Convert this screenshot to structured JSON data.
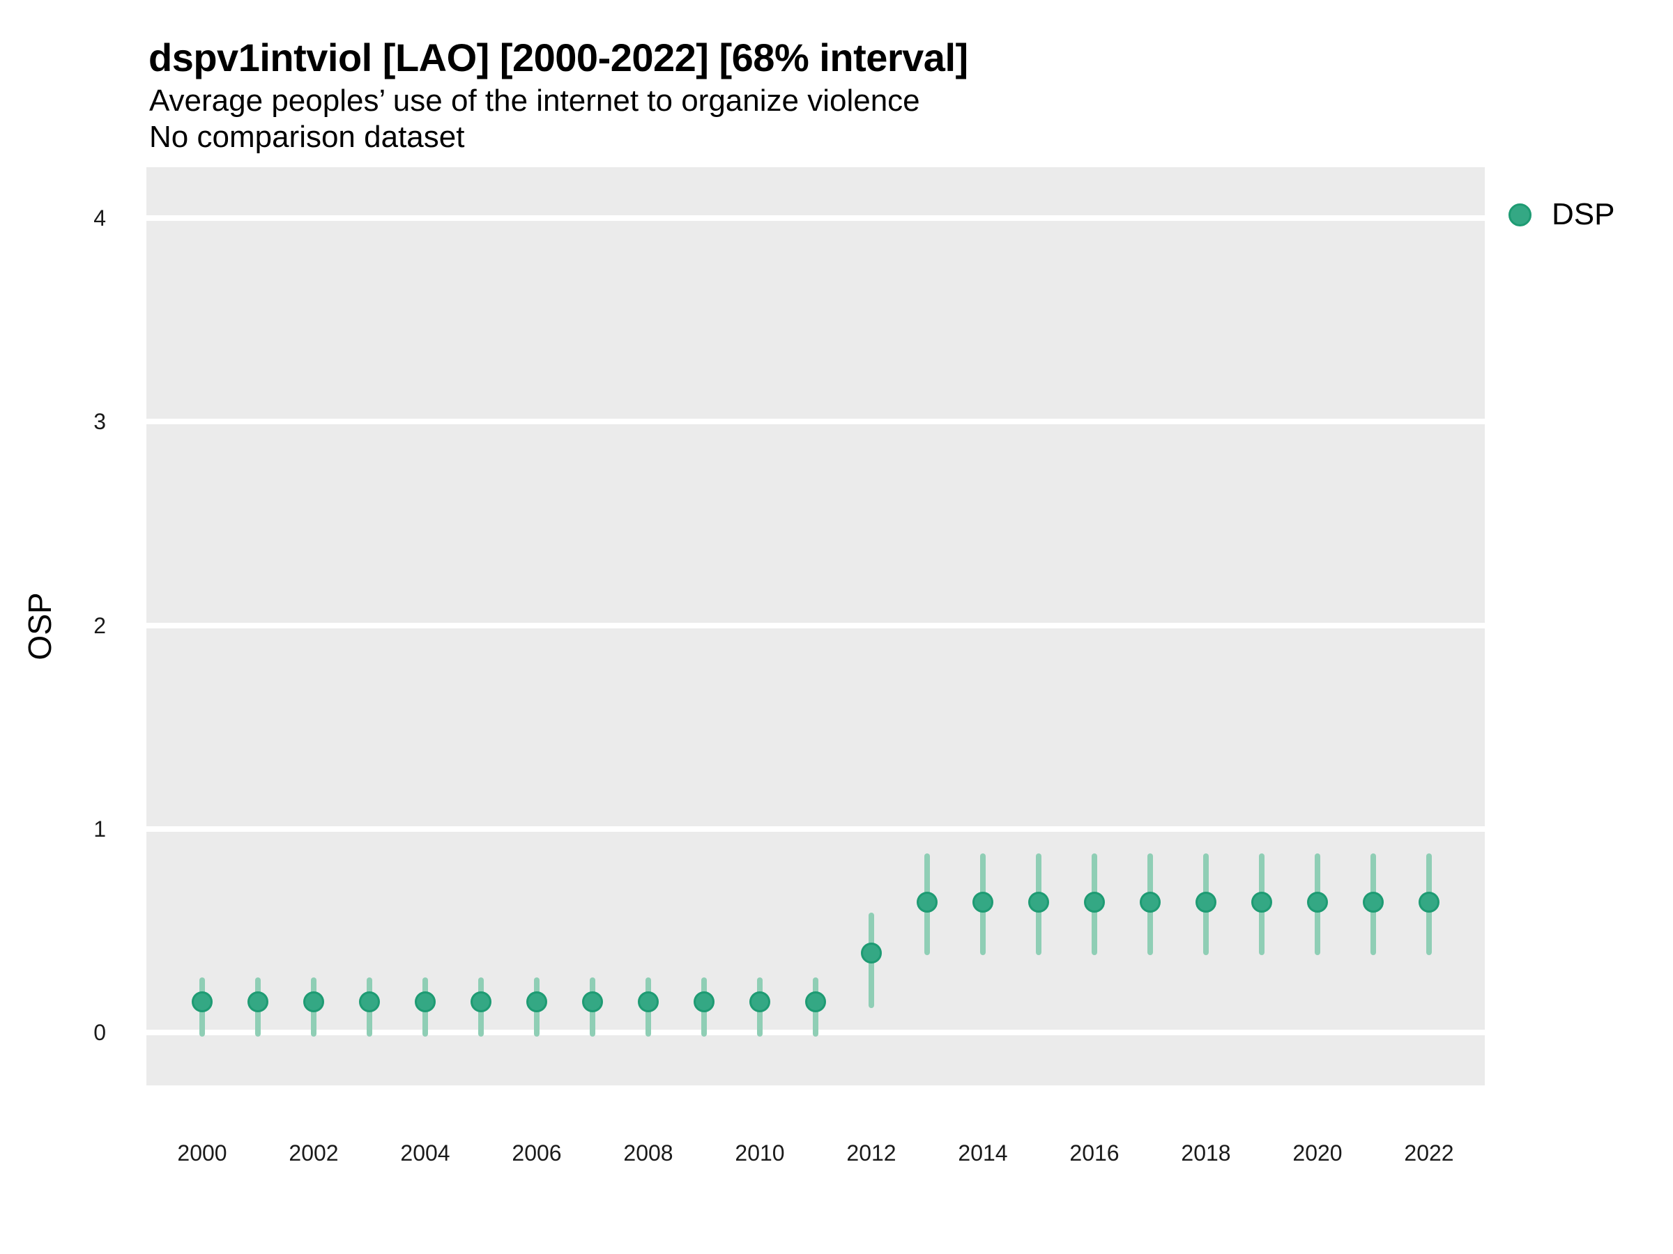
{
  "header": {
    "title": "dspv1intviol [LAO] [2000-2022] [68% interval]",
    "subtitle": "Average peoples’ use of the internet to organize violence",
    "note": "No comparison dataset"
  },
  "legend": {
    "position": "right-top",
    "items": [
      {
        "label": "DSP",
        "color": "#34A884",
        "stroke": "#1E9B73"
      }
    ]
  },
  "colors": {
    "panel_background": "#EBEBEB",
    "gridline": "#FFFFFF",
    "point_fill": "#34A884",
    "point_stroke": "#1E9B73",
    "interval_bar": "#8FCEB5",
    "tick_text": "#1a1a1a",
    "page_background": "#FFFFFF"
  },
  "chart_data": {
    "type": "scatter",
    "subtype": "pointrange-interval",
    "title": "dspv1intviol [LAO] [2000-2022] [68% interval]",
    "subtitle": "Average peoples’ use of the internet to organize violence",
    "note": "No comparison dataset",
    "xlabel": "",
    "ylabel": "OSP",
    "xlim": [
      1999,
      2023
    ],
    "ylim": [
      -0.26,
      4.25
    ],
    "xticks": [
      2000,
      2002,
      2004,
      2006,
      2008,
      2010,
      2012,
      2014,
      2016,
      2018,
      2020,
      2022
    ],
    "yticks": [
      0,
      1,
      2,
      3,
      4
    ],
    "grid": "horizontal-major-only",
    "legend_position": "right-top",
    "interval_label": "68% interval",
    "series": [
      {
        "name": "DSP",
        "point_color": "#34A884",
        "point_stroke": "#1E9B73",
        "interval_color": "#8FCEB5",
        "points": [
          {
            "year": 2000,
            "est": 0.15,
            "lo": -0.02,
            "hi": 0.27
          },
          {
            "year": 2001,
            "est": 0.15,
            "lo": -0.02,
            "hi": 0.27
          },
          {
            "year": 2002,
            "est": 0.15,
            "lo": -0.02,
            "hi": 0.27
          },
          {
            "year": 2003,
            "est": 0.15,
            "lo": -0.02,
            "hi": 0.27
          },
          {
            "year": 2004,
            "est": 0.15,
            "lo": -0.02,
            "hi": 0.27
          },
          {
            "year": 2005,
            "est": 0.15,
            "lo": -0.02,
            "hi": 0.27
          },
          {
            "year": 2006,
            "est": 0.15,
            "lo": -0.02,
            "hi": 0.27
          },
          {
            "year": 2007,
            "est": 0.15,
            "lo": -0.02,
            "hi": 0.27
          },
          {
            "year": 2008,
            "est": 0.15,
            "lo": -0.02,
            "hi": 0.27
          },
          {
            "year": 2009,
            "est": 0.15,
            "lo": -0.02,
            "hi": 0.27
          },
          {
            "year": 2010,
            "est": 0.15,
            "lo": -0.02,
            "hi": 0.27
          },
          {
            "year": 2011,
            "est": 0.15,
            "lo": -0.02,
            "hi": 0.27
          },
          {
            "year": 2012,
            "est": 0.39,
            "lo": 0.12,
            "hi": 0.59
          },
          {
            "year": 2013,
            "est": 0.64,
            "lo": 0.38,
            "hi": 0.88
          },
          {
            "year": 2014,
            "est": 0.64,
            "lo": 0.38,
            "hi": 0.88
          },
          {
            "year": 2015,
            "est": 0.64,
            "lo": 0.38,
            "hi": 0.88
          },
          {
            "year": 2016,
            "est": 0.64,
            "lo": 0.38,
            "hi": 0.88
          },
          {
            "year": 2017,
            "est": 0.64,
            "lo": 0.38,
            "hi": 0.88
          },
          {
            "year": 2018,
            "est": 0.64,
            "lo": 0.38,
            "hi": 0.88
          },
          {
            "year": 2019,
            "est": 0.64,
            "lo": 0.38,
            "hi": 0.88
          },
          {
            "year": 2020,
            "est": 0.64,
            "lo": 0.38,
            "hi": 0.88
          },
          {
            "year": 2021,
            "est": 0.64,
            "lo": 0.38,
            "hi": 0.88
          },
          {
            "year": 2022,
            "est": 0.64,
            "lo": 0.38,
            "hi": 0.88
          }
        ]
      }
    ]
  }
}
